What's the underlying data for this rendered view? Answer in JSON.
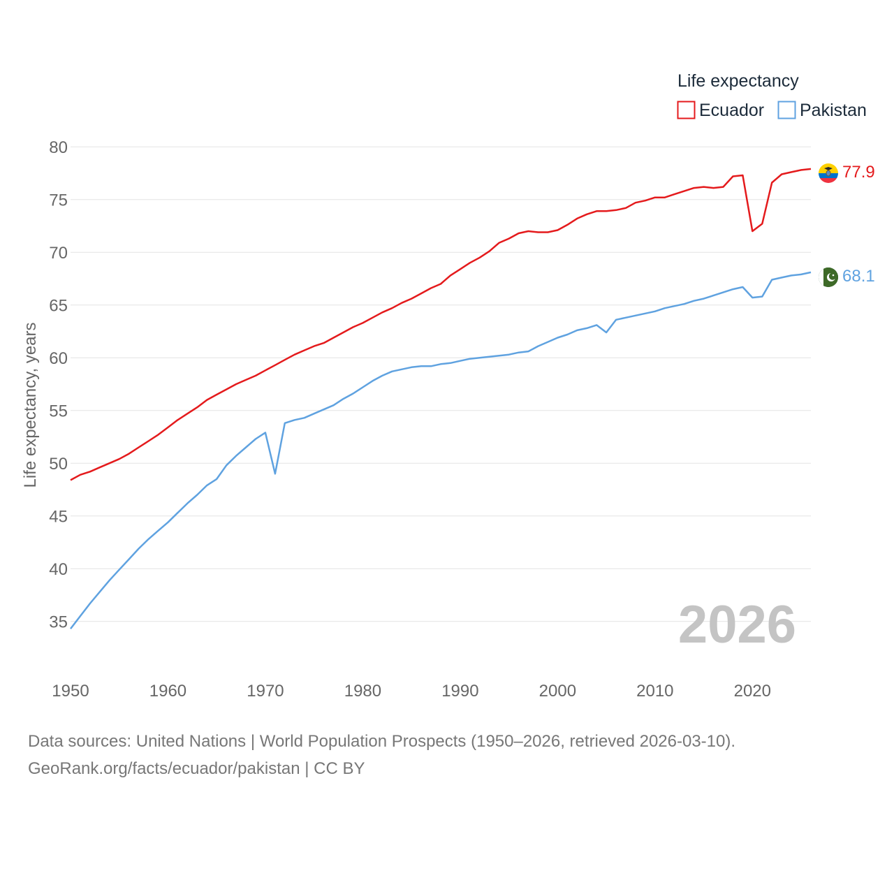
{
  "chart_data": {
    "type": "line",
    "title": "",
    "xlabel": "",
    "ylabel": "Life expectancy, years",
    "xlim": [
      1950,
      2026
    ],
    "ylim": [
      32,
      82
    ],
    "x_ticks": [
      1950,
      1960,
      1970,
      1980,
      1990,
      2000,
      2010,
      2020
    ],
    "y_ticks": [
      35,
      40,
      45,
      50,
      55,
      60,
      65,
      70,
      75,
      80
    ],
    "grid": true,
    "legend": {
      "title": "Life expectancy",
      "position": "top-right"
    },
    "year_label": "2026",
    "x": [
      1950,
      1951,
      1952,
      1953,
      1954,
      1955,
      1956,
      1957,
      1958,
      1959,
      1960,
      1961,
      1962,
      1963,
      1964,
      1965,
      1966,
      1967,
      1968,
      1969,
      1970,
      1971,
      1972,
      1973,
      1974,
      1975,
      1976,
      1977,
      1978,
      1979,
      1980,
      1981,
      1982,
      1983,
      1984,
      1985,
      1986,
      1987,
      1988,
      1989,
      1990,
      1991,
      1992,
      1993,
      1994,
      1995,
      1996,
      1997,
      1998,
      1999,
      2000,
      2001,
      2002,
      2003,
      2004,
      2005,
      2006,
      2007,
      2008,
      2009,
      2010,
      2011,
      2012,
      2013,
      2014,
      2015,
      2016,
      2017,
      2018,
      2019,
      2020,
      2021,
      2022,
      2023,
      2024,
      2025,
      2026
    ],
    "series": [
      {
        "name": "Ecuador",
        "color": "#e41a1c",
        "flag": "ecuador-flag",
        "end_label": "77.9",
        "values": [
          48.4,
          48.9,
          49.2,
          49.6,
          50.0,
          50.4,
          50.9,
          51.5,
          52.1,
          52.7,
          53.4,
          54.1,
          54.7,
          55.3,
          56.0,
          56.5,
          57.0,
          57.5,
          57.9,
          58.3,
          58.8,
          59.3,
          59.8,
          60.3,
          60.7,
          61.1,
          61.4,
          61.9,
          62.4,
          62.9,
          63.3,
          63.8,
          64.3,
          64.7,
          65.2,
          65.6,
          66.1,
          66.6,
          67.0,
          67.8,
          68.4,
          69.0,
          69.5,
          70.1,
          70.9,
          71.3,
          71.8,
          72.0,
          71.9,
          71.9,
          72.1,
          72.6,
          73.2,
          73.6,
          73.9,
          73.9,
          74.0,
          74.2,
          74.7,
          74.9,
          75.2,
          75.2,
          75.5,
          75.8,
          76.1,
          76.2,
          76.1,
          76.2,
          77.2,
          77.3,
          72.0,
          72.7,
          76.6,
          77.4,
          77.6,
          77.8,
          77.9
        ]
      },
      {
        "name": "Pakistan",
        "color": "#5fa2e0",
        "flag": "pakistan-flag",
        "end_label": "68.1",
        "values": [
          34.3,
          35.5,
          36.7,
          37.8,
          38.9,
          39.9,
          40.9,
          41.9,
          42.8,
          43.6,
          44.4,
          45.3,
          46.2,
          47.0,
          47.9,
          48.5,
          49.8,
          50.7,
          51.5,
          52.3,
          52.9,
          49.0,
          53.8,
          54.1,
          54.3,
          54.7,
          55.1,
          55.5,
          56.1,
          56.6,
          57.2,
          57.8,
          58.3,
          58.7,
          58.9,
          59.1,
          59.2,
          59.2,
          59.4,
          59.5,
          59.7,
          59.9,
          60.0,
          60.1,
          60.2,
          60.3,
          60.5,
          60.6,
          61.1,
          61.5,
          61.9,
          62.2,
          62.6,
          62.8,
          63.1,
          62.4,
          63.6,
          63.8,
          64.0,
          64.2,
          64.4,
          64.7,
          64.9,
          65.1,
          65.4,
          65.6,
          65.9,
          66.2,
          66.5,
          66.7,
          65.7,
          65.8,
          67.4,
          67.6,
          67.8,
          67.9,
          68.1
        ]
      }
    ]
  },
  "footer": {
    "line1": "Data sources: United Nations | World Population Prospects (1950–2026, retrieved 2026-03-10).",
    "line2": "GeoRank.org/facts/ecuador/pakistan | CC BY"
  }
}
